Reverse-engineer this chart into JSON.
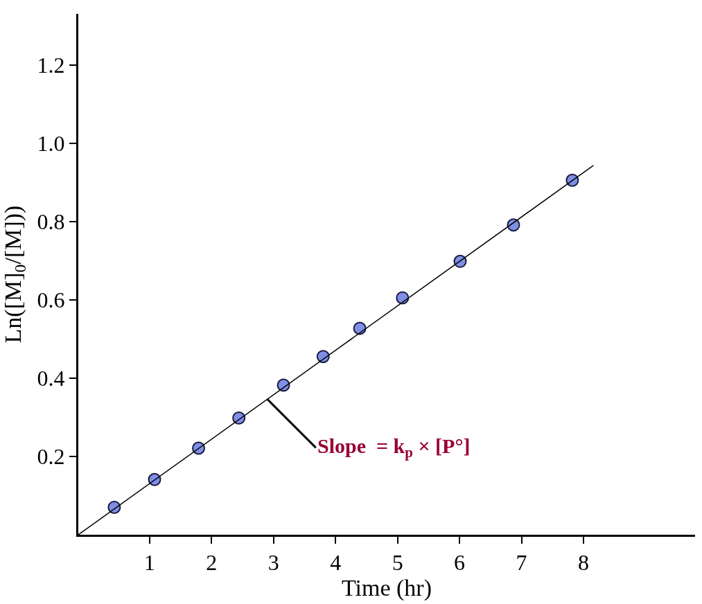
{
  "chart_data": {
    "type": "scatter",
    "xlabel": "Time (hr)",
    "ylabel": "Ln([M]$_{0}$/[M]))",
    "xlim": [
      -0.15,
      9.8
    ],
    "ylim": [
      0,
      1.33
    ],
    "xticks": [
      1,
      2,
      3,
      4,
      5,
      6,
      7,
      8
    ],
    "yticks": [
      {
        "value": 0.2,
        "label": "0.2"
      },
      {
        "value": 0.4,
        "label": "0.4"
      },
      {
        "value": 0.6,
        "label": "0.6"
      },
      {
        "value": 0.8,
        "label": "0.8"
      },
      {
        "value": 1.0,
        "label": "1.0"
      },
      {
        "value": 1.2,
        "label": "1.2"
      }
    ],
    "series": [
      {
        "color": "#7f8fe6",
        "marker": "circle",
        "x": [
          0.43,
          1.08,
          1.79,
          2.44,
          3.16,
          3.8,
          4.39,
          5.08,
          6.01,
          6.87,
          7.82
        ],
        "values": [
          0.07,
          0.141,
          0.221,
          0.298,
          0.382,
          0.455,
          0.527,
          0.605,
          0.698,
          0.791,
          0.905
        ]
      },
      {
        "type": "line",
        "color": "#000000",
        "line_style": "solid",
        "x": [
          -0.15,
          8.16
        ],
        "values": [
          0,
          0.943
        ]
      }
    ],
    "annotations": [
      {
        "text": "Slope  = k$_{p}$ × [P°]",
        "x": 2.9,
        "y": 0.346
      }
    ],
    "tick_labels": true
  }
}
